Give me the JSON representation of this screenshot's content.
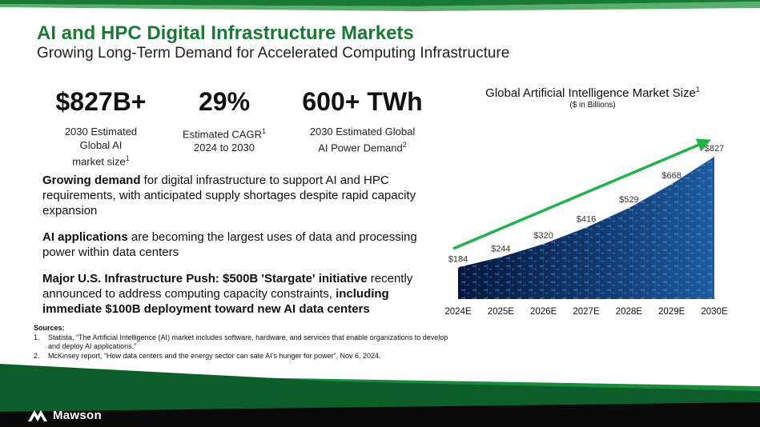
{
  "header": {
    "title": "AI and HPC Digital Infrastructure Markets",
    "subtitle": "Growing Long-Term Demand for Accelerated Computing Infrastructure"
  },
  "stats": [
    {
      "value": "$827B+",
      "line1": "2030 Estimated",
      "line2": "Global AI",
      "line3": "market size",
      "ref": "1"
    },
    {
      "value": "29%",
      "line1": "Estimated CAGR",
      "line1_ref": "1",
      "line2": "2024 to 2030"
    },
    {
      "value": "600+ TWh",
      "line1": "2030 Estimated Global",
      "line2": "AI Power Demand",
      "ref": "2"
    }
  ],
  "bullets": [
    {
      "bold": "Growing demand",
      "text": " for digital infrastructure to support AI and HPC requirements, with anticipated supply shortages despite rapid capacity expansion"
    },
    {
      "bold": "AI applications",
      "text": " are becoming the largest uses of data and processing power within data centers"
    },
    {
      "bold": "Major U.S. Infrastructure Push: $500B 'Stargate' initiative",
      "text": " recently announced to address computing capacity constraints, ",
      "bold2": "including immediate $100B deployment toward new AI data centers"
    }
  ],
  "sources": {
    "header": "Sources:",
    "items": [
      {
        "num": "1.",
        "text": "Statista, “The Artificial Intelligence (AI) market includes software, hardware, and services that enable organizations to develop and deploy AI applications.”"
      },
      {
        "num": "2.",
        "text": "McKinsey report, “How data centers and the energy sector can sate AI’s hunger for power”, Nov 6, 2024."
      }
    ]
  },
  "chart_data": {
    "type": "area",
    "title": "Global Artificial Intelligence Market Size",
    "title_ref": "1",
    "subtitle": "($ in Billions)",
    "categories": [
      "2024E",
      "2025E",
      "2026E",
      "2027E",
      "2028E",
      "2029E",
      "2030E"
    ],
    "values": [
      184,
      244,
      320,
      416,
      529,
      668,
      827
    ],
    "value_labels": [
      "$184",
      "$244",
      "$320",
      "$416",
      "$529",
      "$668",
      "$827"
    ],
    "ylim": [
      0,
      827
    ],
    "trend_arrow": true,
    "colors": {
      "arrow": "#22b24c",
      "fill_dark": "#07173a",
      "fill_light": "#1e5c9e",
      "accent": "#6fb8ff"
    }
  },
  "footer": {
    "brand": "Mawson",
    "colors": {
      "green_dark": "#0d5e2a",
      "green": "#1a8a3c",
      "black": "#0a0a0a"
    }
  }
}
